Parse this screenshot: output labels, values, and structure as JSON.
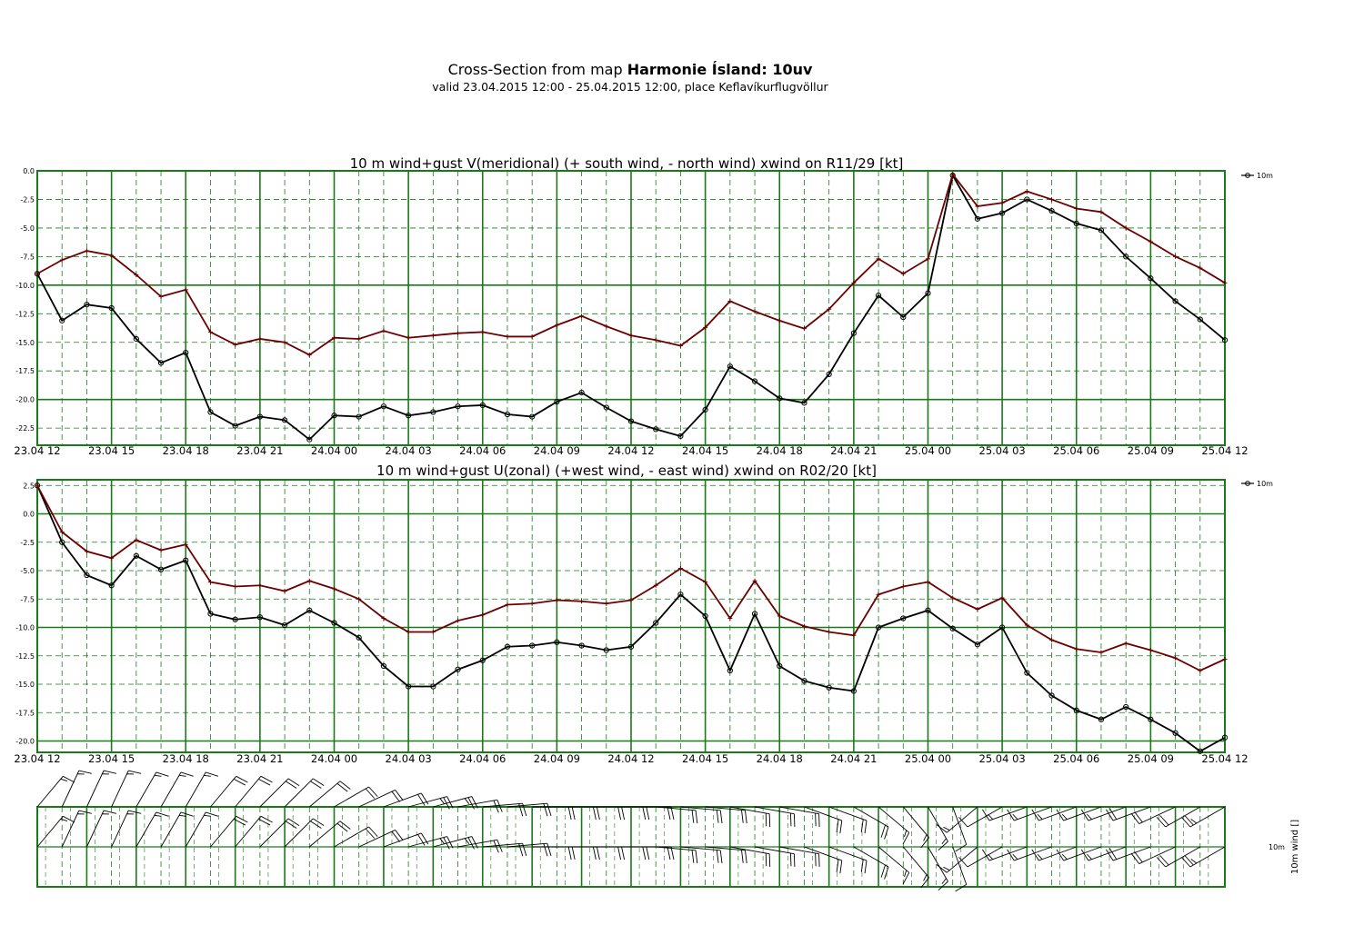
{
  "header": {
    "title_prefix": "Cross-Section from map",
    "title_bold": "Harmonie Ísland: 10uv",
    "subtitle": "valid 23.04.2015 12:00 - 25.04.2015 12:00, place Keflavíkurflugvöllur"
  },
  "colors": {
    "grid": "#1a7a1a",
    "wind": "#000000",
    "gust": "#6b0000"
  },
  "x_tick_labels": [
    "23.04 12",
    "23.04 15",
    "23.04 18",
    "23.04 21",
    "24.04 00",
    "24.04 03",
    "24.04 06",
    "24.04 09",
    "24.04 12",
    "24.04 15",
    "24.04 18",
    "24.04 21",
    "25.04 00",
    "25.04 03",
    "25.04 06",
    "25.04 09",
    "25.04 12"
  ],
  "chart_data": [
    {
      "type": "line",
      "title": "10 m wind+gust V(meridional) (+ south wind, - north wind) xwind on R11/29 [kt]",
      "x_hours": [
        0,
        1,
        2,
        3,
        4,
        5,
        6,
        7,
        8,
        9,
        10,
        11,
        12,
        13,
        14,
        15,
        16,
        17,
        18,
        19,
        20,
        21,
        22,
        23,
        24,
        25,
        26,
        27,
        28,
        29,
        30,
        31,
        32,
        33,
        34,
        35,
        36,
        37,
        38,
        39,
        40,
        41,
        42,
        43,
        44,
        45,
        46,
        47,
        48
      ],
      "ylim": [
        -24,
        0
      ],
      "y_ticks": [
        "0.0",
        "-2.5",
        "-5.0",
        "-7.5",
        "-10.0",
        "-12.5",
        "-15.0",
        "-17.5",
        "-20.0",
        "-22.5"
      ],
      "y_tick_values": [
        0,
        -2.5,
        -5,
        -7.5,
        -10,
        -12.5,
        -15,
        -17.5,
        -20,
        -22.5
      ],
      "legend": "10m",
      "series": [
        {
          "role": "wind",
          "marker": "circle",
          "values": [
            -9.0,
            -13.1,
            -11.7,
            -12.0,
            -14.7,
            -16.8,
            -15.9,
            -21.1,
            -22.3,
            -21.5,
            -21.8,
            -23.5,
            -21.4,
            -21.5,
            -20.6,
            -21.4,
            -21.1,
            -20.6,
            -20.5,
            -21.3,
            -21.5,
            -20.2,
            -19.4,
            -20.7,
            -21.9,
            -22.6,
            -23.2,
            -20.9,
            -17.1,
            -18.4,
            -19.9,
            -20.3,
            -17.8,
            -14.2,
            -10.9,
            -12.8,
            -10.7,
            -0.4,
            -4.2,
            -3.7,
            -2.5,
            -3.5,
            -4.6,
            -5.2,
            -7.5,
            -9.4,
            -11.4,
            -13.0,
            -14.8
          ]
        },
        {
          "role": "gust",
          "marker": "plus",
          "values": [
            -9.0,
            -7.8,
            -7.0,
            -7.4,
            -9.1,
            -11.0,
            -10.4,
            -14.1,
            -15.2,
            -14.7,
            -15.0,
            -16.1,
            -14.6,
            -14.7,
            -14.0,
            -14.6,
            -14.4,
            -14.2,
            -14.1,
            -14.5,
            -14.5,
            -13.5,
            -12.7,
            -13.6,
            -14.4,
            -14.8,
            -15.3,
            -13.7,
            -11.4,
            -12.3,
            -13.1,
            -13.8,
            -12.1,
            -9.8,
            -7.7,
            -9.0,
            -7.7,
            -0.3,
            -3.1,
            -2.8,
            -1.8,
            -2.5,
            -3.3,
            -3.6,
            -5.0,
            -6.2,
            -7.5,
            -8.5,
            -9.8
          ]
        }
      ]
    },
    {
      "type": "line",
      "title": "10 m wind+gust U(zonal) (+west wind, - east wind) xwind on R02/20 [kt]",
      "x_hours": [
        0,
        1,
        2,
        3,
        4,
        5,
        6,
        7,
        8,
        9,
        10,
        11,
        12,
        13,
        14,
        15,
        16,
        17,
        18,
        19,
        20,
        21,
        22,
        23,
        24,
        25,
        26,
        27,
        28,
        29,
        30,
        31,
        32,
        33,
        34,
        35,
        36,
        37,
        38,
        39,
        40,
        41,
        42,
        43,
        44,
        45,
        46,
        47,
        48
      ],
      "ylim": [
        -21,
        3
      ],
      "y_ticks": [
        "2.5",
        "0.0",
        "-2.5",
        "-5.0",
        "-7.5",
        "-10.0",
        "-12.5",
        "-15.0",
        "-17.5",
        "-20.0"
      ],
      "y_tick_values": [
        2.5,
        0,
        -2.5,
        -5,
        -7.5,
        -10,
        -12.5,
        -15,
        -17.5,
        -20
      ],
      "legend": "10m",
      "series": [
        {
          "role": "wind",
          "marker": "circle",
          "values": [
            2.5,
            -2.5,
            -5.4,
            -6.3,
            -3.7,
            -4.9,
            -4.1,
            -8.8,
            -9.3,
            -9.1,
            -9.8,
            -8.5,
            -9.6,
            -10.9,
            -13.4,
            -15.2,
            -15.2,
            -13.7,
            -12.9,
            -11.7,
            -11.6,
            -11.3,
            -11.6,
            -12.0,
            -11.7,
            -9.6,
            -7.1,
            -9.0,
            -13.8,
            -8.8,
            -13.4,
            -14.7,
            -15.3,
            -15.6,
            -10.0,
            -9.2,
            -8.5,
            -10.1,
            -11.5,
            -10.0,
            -14.0,
            -16.0,
            -17.3,
            -18.1,
            -17.0,
            -18.1,
            -19.3,
            -20.9,
            -19.7
          ]
        },
        {
          "role": "gust",
          "marker": "plus",
          "values": [
            2.5,
            -1.6,
            -3.3,
            -3.9,
            -2.3,
            -3.2,
            -2.7,
            -6.0,
            -6.4,
            -6.3,
            -6.8,
            -5.9,
            -6.6,
            -7.5,
            -9.2,
            -10.4,
            -10.4,
            -9.4,
            -8.9,
            -8.0,
            -7.9,
            -7.6,
            -7.7,
            -7.9,
            -7.6,
            -6.3,
            -4.8,
            -6.0,
            -9.2,
            -5.9,
            -9.0,
            -9.9,
            -10.4,
            -10.7,
            -7.1,
            -6.4,
            -6.0,
            -7.4,
            -8.4,
            -7.4,
            -9.8,
            -11.1,
            -11.9,
            -12.2,
            -11.4,
            -12.0,
            -12.7,
            -13.8,
            -12.8
          ]
        }
      ]
    },
    {
      "type": "wind-barbs",
      "legend": "10m",
      "ylabel": "10m wind []",
      "directions_deg": [
        40,
        25,
        25,
        25,
        30,
        30,
        30,
        40,
        40,
        45,
        45,
        50,
        60,
        65,
        70,
        75,
        75,
        80,
        85,
        85,
        90,
        90,
        90,
        90,
        90,
        95,
        95,
        95,
        100,
        100,
        100,
        110,
        110,
        120,
        130,
        140,
        150,
        160,
        230,
        240,
        250,
        250,
        250,
        250,
        250,
        250,
        245,
        240,
        240
      ],
      "speeds_kt": [
        15,
        16,
        17,
        17,
        17,
        17,
        16,
        21,
        22,
        22,
        22,
        23,
        24,
        24,
        24,
        25,
        25,
        24,
        23,
        23,
        23,
        23,
        23,
        24,
        24,
        23,
        22,
        22,
        22,
        22,
        23,
        24,
        23,
        20,
        17,
        17,
        16,
        13,
        15,
        14,
        15,
        16,
        18,
        19,
        19,
        21,
        22,
        24,
        25
      ]
    }
  ]
}
